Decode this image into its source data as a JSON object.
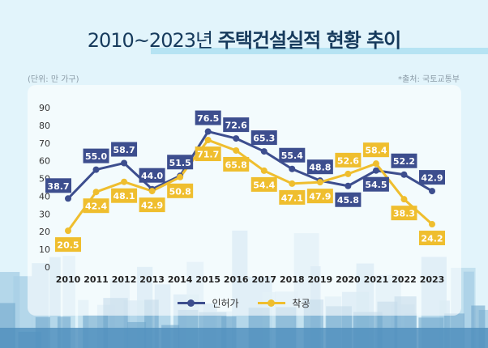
{
  "header": {
    "title_light": "2010~2023년",
    "title_bold": "주택건설실적 현황 추이",
    "unit": "(단위: 만 가구)",
    "source": "*출처: 국토교통부"
  },
  "colors": {
    "permit": "#3d4e8e",
    "start": "#efbe2e",
    "background": "#e2f4fb",
    "title": "#163a5c"
  },
  "chart_data": {
    "type": "line",
    "title": "2010~2023년 주택건설실적 현황 추이",
    "xlabel": "",
    "ylabel": "(단위: 만 가구)",
    "ylim": [
      0,
      90
    ],
    "yticks": [
      0,
      10,
      20,
      30,
      40,
      50,
      60,
      70,
      80,
      90
    ],
    "grid": false,
    "legend": "bottom-center",
    "categories": [
      "2010",
      "2011",
      "2012",
      "2013",
      "2014",
      "2015",
      "2016",
      "2017",
      "2018",
      "2019",
      "2020",
      "2021",
      "2022",
      "2023"
    ],
    "series": [
      {
        "name": "인허가",
        "values": [
          38.7,
          55.0,
          58.7,
          44.0,
          51.5,
          76.5,
          72.6,
          65.3,
          55.4,
          48.8,
          45.8,
          54.5,
          52.2,
          42.9
        ]
      },
      {
        "name": "착공",
        "values": [
          20.5,
          42.4,
          48.1,
          42.9,
          50.8,
          71.7,
          65.8,
          54.4,
          47.1,
          47.9,
          52.6,
          58.4,
          38.3,
          24.2
        ]
      }
    ]
  }
}
